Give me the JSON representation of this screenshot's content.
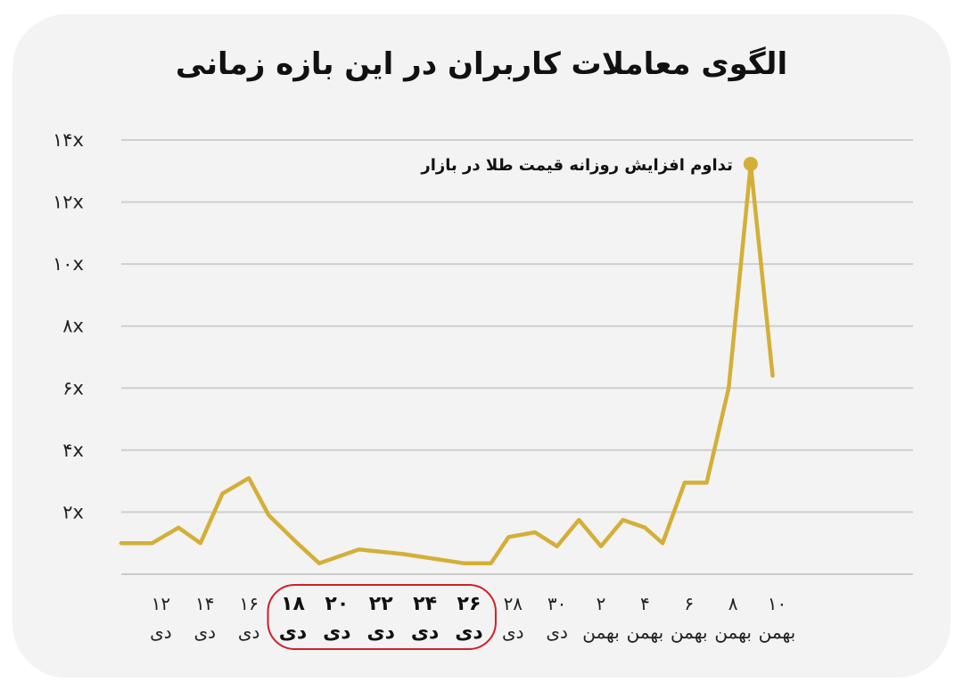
{
  "chart_data": {
    "type": "line",
    "title": "الگوی معاملات کاربران در این بازه زمانی",
    "xlabel": "",
    "ylabel": "",
    "yticks": [
      "۲x",
      "۴x",
      "۶x",
      "۸x",
      "۱۰x",
      "۱۲x",
      "۱۴x"
    ],
    "ytick_values": [
      2,
      4,
      6,
      8,
      10,
      12,
      14
    ],
    "ylim": [
      0,
      14
    ],
    "x_range": [
      10.2,
      44.6
    ],
    "categories": [
      {
        "x": 12,
        "top": "۱۲",
        "bottom": "دی",
        "highlight": false
      },
      {
        "x": 14,
        "top": "۱۴",
        "bottom": "دی",
        "highlight": false
      },
      {
        "x": 16,
        "top": "۱۶",
        "bottom": "دی",
        "highlight": false
      },
      {
        "x": 18,
        "top": "۱۸",
        "bottom": "دی",
        "highlight": true
      },
      {
        "x": 20,
        "top": "۲۰",
        "bottom": "دی",
        "highlight": true
      },
      {
        "x": 22,
        "top": "۲۲",
        "bottom": "دی",
        "highlight": true
      },
      {
        "x": 24,
        "top": "۲۴",
        "bottom": "دی",
        "highlight": true
      },
      {
        "x": 26,
        "top": "۲۶",
        "bottom": "دی",
        "highlight": true
      },
      {
        "x": 28,
        "top": "۲۸",
        "bottom": "دی",
        "highlight": false
      },
      {
        "x": 30,
        "top": "۳۰",
        "bottom": "دی",
        "highlight": false
      },
      {
        "x": 32,
        "top": "۲",
        "bottom": "بهمن",
        "highlight": false
      },
      {
        "x": 34,
        "top": "۴",
        "bottom": "بهمن",
        "highlight": false
      },
      {
        "x": 36,
        "top": "۶",
        "bottom": "بهمن",
        "highlight": false
      },
      {
        "x": 38,
        "top": "۸",
        "bottom": "بهمن",
        "highlight": false
      },
      {
        "x": 40,
        "top": "۱۰",
        "bottom": "بهمن",
        "highlight": false
      }
    ],
    "series": [
      {
        "color": "#d4af37",
        "points": [
          [
            10.2,
            1.0
          ],
          [
            11.6,
            1.0
          ],
          [
            12.8,
            1.5
          ],
          [
            13.8,
            1.0
          ],
          [
            14.8,
            2.6
          ],
          [
            16.0,
            3.1
          ],
          [
            16.9,
            1.9
          ],
          [
            18.2,
            1.0
          ],
          [
            19.2,
            0.35
          ],
          [
            21.0,
            0.8
          ],
          [
            23.0,
            0.65
          ],
          [
            25.8,
            0.35
          ],
          [
            27.0,
            0.35
          ],
          [
            27.8,
            1.2
          ],
          [
            29.0,
            1.35
          ],
          [
            30.0,
            0.9
          ],
          [
            31.0,
            1.75
          ],
          [
            32.0,
            0.9
          ],
          [
            33.0,
            1.75
          ],
          [
            34.0,
            1.5
          ],
          [
            34.8,
            1.0
          ],
          [
            35.8,
            2.95
          ],
          [
            36.8,
            2.95
          ],
          [
            37.8,
            6.0
          ],
          [
            38.8,
            13.2
          ],
          [
            39.8,
            6.4
          ]
        ]
      }
    ],
    "annotation": {
      "text": "تداوم افزایش روزانه قیمت طلا در بازار",
      "x": 38.8,
      "y": 13.2
    },
    "highlight_range": {
      "from_x": 18,
      "to_x": 26,
      "border_color": "#d11f2a"
    },
    "grid": true,
    "legend": "none"
  }
}
